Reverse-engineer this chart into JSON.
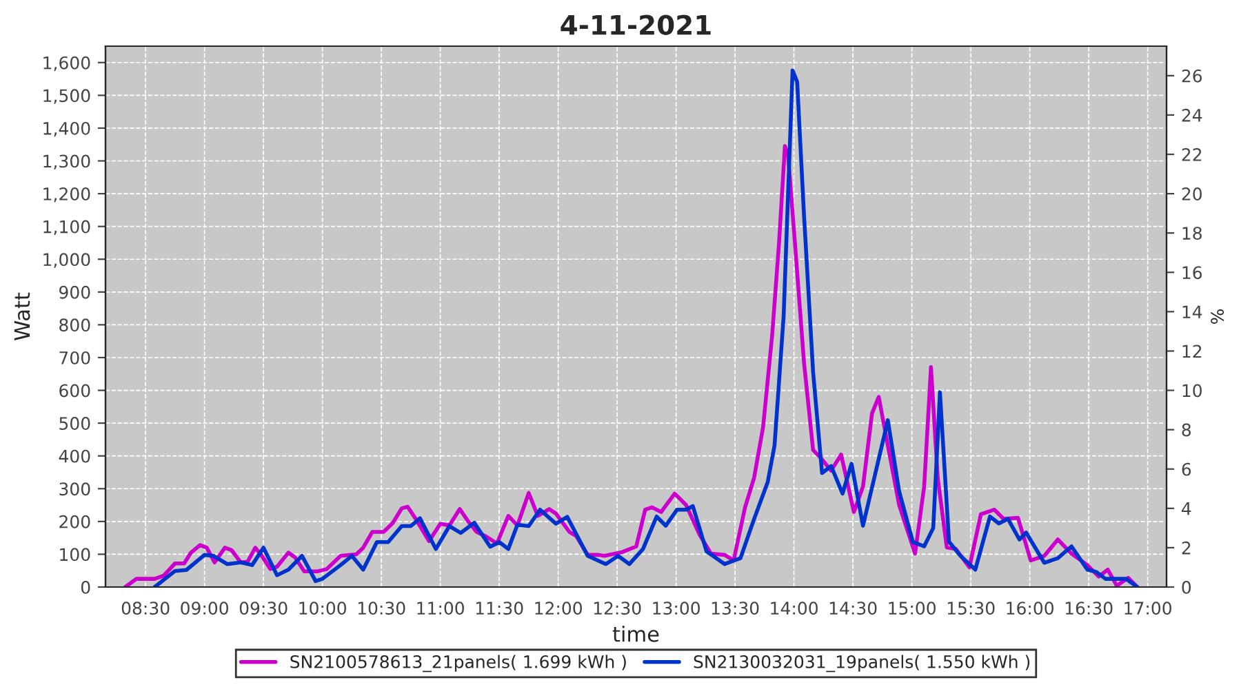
{
  "chart_data": {
    "type": "line",
    "title": "4-11-2021",
    "xlabel": "time",
    "ylabel": "Watt",
    "y2label": "%",
    "xlim": [
      8.16,
      17.16
    ],
    "xticks": [
      {
        "value": 8.5,
        "label": "08:30"
      },
      {
        "value": 9.0,
        "label": "09:00"
      },
      {
        "value": 9.5,
        "label": "09:30"
      },
      {
        "value": 10.0,
        "label": "10:00"
      },
      {
        "value": 10.5,
        "label": "10:30"
      },
      {
        "value": 11.0,
        "label": "11:00"
      },
      {
        "value": 11.5,
        "label": "11:30"
      },
      {
        "value": 12.0,
        "label": "12:00"
      },
      {
        "value": 12.5,
        "label": "12:30"
      },
      {
        "value": 13.0,
        "label": "13:00"
      },
      {
        "value": 13.5,
        "label": "13:30"
      },
      {
        "value": 14.0,
        "label": "14:00"
      },
      {
        "value": 14.5,
        "label": "14:30"
      },
      {
        "value": 15.0,
        "label": "15:00"
      },
      {
        "value": 15.5,
        "label": "15:30"
      },
      {
        "value": 16.0,
        "label": "16:00"
      },
      {
        "value": 16.5,
        "label": "16:30"
      },
      {
        "value": 17.0,
        "label": "17:00"
      }
    ],
    "ylim": [
      0,
      1650
    ],
    "yticks": [
      0,
      100,
      200,
      300,
      400,
      500,
      600,
      700,
      800,
      900,
      {
        "value": 1000,
        "label": "1,000"
      },
      {
        "value": 1100,
        "label": "1,100"
      },
      {
        "value": 1200,
        "label": "1,200"
      },
      {
        "value": 1300,
        "label": "1,300"
      },
      {
        "value": 1400,
        "label": "1,400"
      },
      {
        "value": 1500,
        "label": "1,500"
      },
      {
        "value": 1600,
        "label": "1,600"
      }
    ],
    "y2lim": [
      0,
      27.5
    ],
    "y2ticks": [
      0,
      2,
      4,
      6,
      8,
      10,
      12,
      14,
      16,
      18,
      20,
      22,
      24,
      26
    ],
    "grid": true,
    "legend": "bottom",
    "line_style": "solid",
    "series": [
      {
        "name": "SN2100578613_21panels( 1.699 kWh )",
        "color": "#cc00cc",
        "x": [
          8.327,
          8.423,
          8.577,
          8.654,
          8.75,
          8.827,
          8.885,
          8.962,
          9.019,
          9.085,
          9.173,
          9.231,
          9.308,
          9.365,
          9.431,
          9.481,
          9.558,
          9.615,
          9.712,
          9.769,
          9.846,
          9.962,
          10.038,
          10.154,
          10.288,
          10.346,
          10.423,
          10.519,
          10.596,
          10.673,
          10.723,
          10.788,
          10.904,
          11.0,
          11.077,
          11.165,
          11.231,
          11.308,
          11.385,
          11.481,
          11.577,
          11.654,
          11.75,
          11.827,
          11.923,
          11.981,
          12.096,
          12.154,
          12.25,
          12.346,
          12.392,
          12.546,
          12.662,
          12.738,
          12.796,
          12.873,
          12.988,
          13.085,
          13.2,
          13.296,
          13.412,
          13.488,
          13.585,
          13.662,
          13.738,
          13.815,
          13.873,
          13.923,
          13.95,
          14.008,
          14.085,
          14.162,
          14.219,
          14.315,
          14.4,
          14.508,
          14.585,
          14.662,
          14.719,
          14.796,
          14.892,
          15.027,
          15.104,
          15.162,
          15.219,
          15.296,
          15.373,
          15.488,
          15.585,
          15.7,
          15.777,
          15.9,
          16.008,
          16.123,
          16.238,
          16.354,
          16.488,
          16.585,
          16.662,
          16.738,
          16.835,
          16.912
        ],
        "values": [
          0,
          25,
          25,
          35,
          72,
          72,
          105,
          128,
          120,
          75,
          120,
          112,
          75,
          77,
          120,
          98,
          55,
          62,
          105,
          90,
          48,
          48,
          55,
          95,
          100,
          120,
          168,
          168,
          195,
          240,
          245,
          210,
          140,
          193,
          188,
          238,
          203,
          168,
          155,
          133,
          217,
          188,
          287,
          217,
          238,
          224,
          168,
          155,
          98,
          98,
          95,
          107,
          124,
          236,
          243,
          229,
          285,
          250,
          159,
          102,
          98,
          81,
          243,
          334,
          488,
          769,
          1050,
          1345,
          1316,
          1050,
          685,
          418,
          397,
          355,
          404,
          229,
          306,
          530,
          580,
          432,
          250,
          102,
          306,
          671,
          334,
          121,
          116,
          60,
          222,
          236,
          208,
          211,
          81,
          95,
          145,
          102,
          67,
          32,
          53,
          4,
          28,
          0
        ]
      },
      {
        "name": "SN2130032031_19panels( 1.550 kWh )",
        "color": "#0033cc",
        "x": [
          8.577,
          8.75,
          8.846,
          9.0,
          9.077,
          9.192,
          9.308,
          9.404,
          9.5,
          9.615,
          9.712,
          9.827,
          9.942,
          10.0,
          10.154,
          10.25,
          10.346,
          10.462,
          10.558,
          10.673,
          10.75,
          10.827,
          10.962,
          11.077,
          11.173,
          11.288,
          11.423,
          11.5,
          11.577,
          11.654,
          11.75,
          11.846,
          11.981,
          12.077,
          12.25,
          12.404,
          12.508,
          12.604,
          12.719,
          12.835,
          12.912,
          13.008,
          13.085,
          13.142,
          13.258,
          13.412,
          13.546,
          13.662,
          13.777,
          13.835,
          13.912,
          13.988,
          14.027,
          14.085,
          14.162,
          14.238,
          14.315,
          14.412,
          14.488,
          14.585,
          14.7,
          14.796,
          14.892,
          15.008,
          15.104,
          15.181,
          15.238,
          15.315,
          15.412,
          15.538,
          15.662,
          15.738,
          15.815,
          15.912,
          15.969,
          16.123,
          16.238,
          16.354,
          16.488,
          16.565,
          16.642,
          16.815,
          16.912
        ],
        "values": [
          0,
          49,
          52,
          98,
          95,
          70,
          75,
          67,
          120,
          36,
          53,
          95,
          18,
          25,
          67,
          95,
          53,
          137,
          137,
          186,
          186,
          210,
          116,
          186,
          165,
          196,
          123,
          137,
          116,
          190,
          186,
          236,
          193,
          214,
          95,
          70,
          95,
          70,
          116,
          215,
          187,
          236,
          236,
          247,
          109,
          70,
          88,
          208,
          320,
          432,
          825,
          1576,
          1541,
          1134,
          657,
          348,
          369,
          285,
          376,
          187,
          362,
          509,
          292,
          138,
          124,
          180,
          594,
          138,
          95,
          53,
          215,
          194,
          208,
          145,
          166,
          74,
          88,
          124,
          53,
          46,
          25,
          25,
          0
        ]
      }
    ]
  }
}
